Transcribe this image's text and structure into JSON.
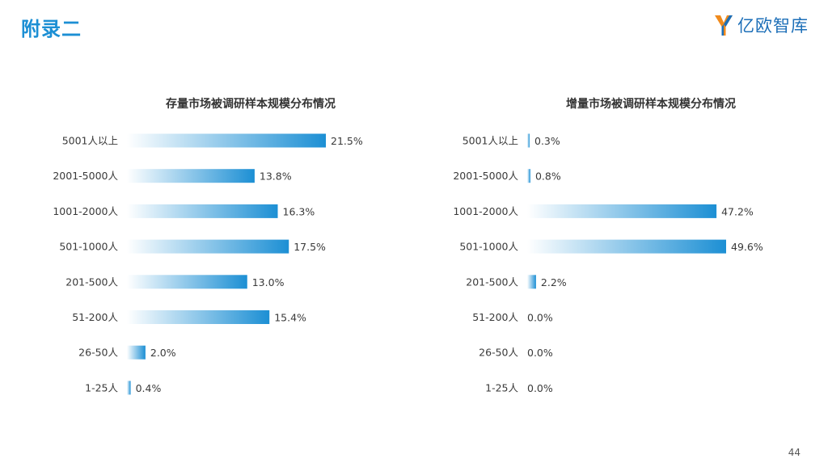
{
  "header": {
    "title": "附录二",
    "brand_name": "亿欧智库",
    "brand_logo_icon": "yiou-logo-icon"
  },
  "colors": {
    "accent": "#1c8fd4",
    "bar_start": "#ffffff",
    "bar_end": "#1c8fd4"
  },
  "footer": {
    "page_number": "44"
  },
  "chart_data": [
    {
      "type": "bar",
      "orientation": "horizontal",
      "title": "存量市场被调研样本规模分布情况",
      "categories": [
        "5001人以上",
        "2001-5000人",
        "1001-2000人",
        "501-1000人",
        "201-500人",
        "51-200人",
        "26-50人",
        "1-25人"
      ],
      "values": [
        21.5,
        13.8,
        16.3,
        17.5,
        13.0,
        15.4,
        2.0,
        0.4
      ],
      "value_labels": [
        "21.5%",
        "13.8%",
        "16.3%",
        "17.5%",
        "13.0%",
        "15.4%",
        "2.0%",
        "0.4%"
      ],
      "unit": "%",
      "xlim": [
        0,
        21.5
      ],
      "grid": false,
      "legend": "none"
    },
    {
      "type": "bar",
      "orientation": "horizontal",
      "title": "增量市场被调研样本规模分布情况",
      "categories": [
        "5001人以上",
        "2001-5000人",
        "1001-2000人",
        "501-1000人",
        "201-500人",
        "51-200人",
        "26-50人",
        "1-25人"
      ],
      "values": [
        0.3,
        0.8,
        47.2,
        49.6,
        2.2,
        0.0,
        0.0,
        0.0
      ],
      "value_labels": [
        "0.3%",
        "0.8%",
        "47.2%",
        "49.6%",
        "2.2%",
        "0.0%",
        "0.0%",
        "0.0%"
      ],
      "unit": "%",
      "xlim": [
        0,
        49.6
      ],
      "grid": false,
      "legend": "none"
    }
  ]
}
